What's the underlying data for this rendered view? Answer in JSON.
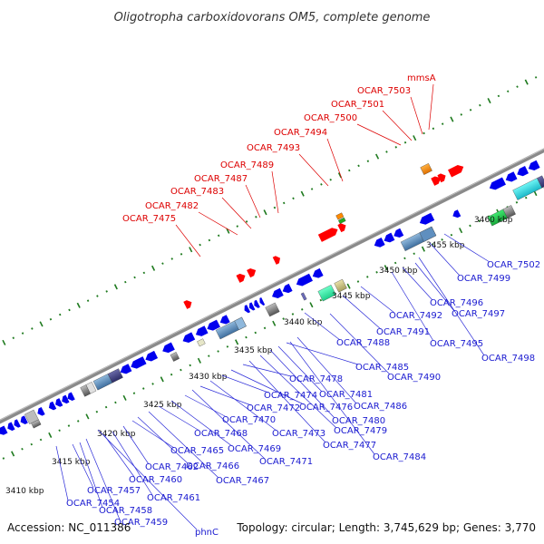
{
  "title": "Oligotropha carboxidovorans OM5, complete genome",
  "footer": {
    "accession": "Accession: NC_011386",
    "stats": "Topology: circular; Length: 3,745,629 bp; Genes: 3,770"
  },
  "colors": {
    "forward_genes": "#ff0000",
    "reverse_genes": "#0000ee",
    "backbone": "#8a8a8a",
    "ticks": "#1e7a1e",
    "forward_label": "#dd0000",
    "reverse_label": "#1a1ad0"
  },
  "scale_labels": [
    "3410 kbp",
    "3415 kbp",
    "3420 kbp",
    "3425 kbp",
    "3430 kbp",
    "3435 kbp",
    "3440 kbp",
    "3445 kbp",
    "3450 kbp",
    "3455 kbp",
    "3460 kbp"
  ],
  "forward_labels": [
    "OCAR_7475",
    "OCAR_7482",
    "OCAR_7483",
    "OCAR_7487",
    "OCAR_7489",
    "OCAR_7493",
    "OCAR_7494",
    "OCAR_7500",
    "OCAR_7501",
    "OCAR_7503",
    "mmsA"
  ],
  "reverse_labels": [
    "OCAR_7454",
    "OCAR_7457",
    "OCAR_7458",
    "OCAR_7459",
    "phnC",
    "OCAR_7460",
    "OCAR_7461",
    "OCAR_7462",
    "OCAR_7465",
    "OCAR_7466",
    "OCAR_7467",
    "OCAR_7468",
    "OCAR_7469",
    "OCAR_7470",
    "OCAR_7471",
    "OCAR_7472",
    "OCAR_7473",
    "OCAR_7474",
    "OCAR_7476",
    "OCAR_7477",
    "OCAR_7478",
    "OCAR_7479",
    "OCAR_7480",
    "OCAR_7481",
    "OCAR_7484",
    "OCAR_7485",
    "OCAR_7486",
    "OCAR_7488",
    "OCAR_7490",
    "OCAR_7491",
    "OCAR_7492",
    "OCAR_7495",
    "OCAR_7496",
    "OCAR_7497",
    "OCAR_7498",
    "OCAR_7499",
    "OCAR_7502"
  ]
}
